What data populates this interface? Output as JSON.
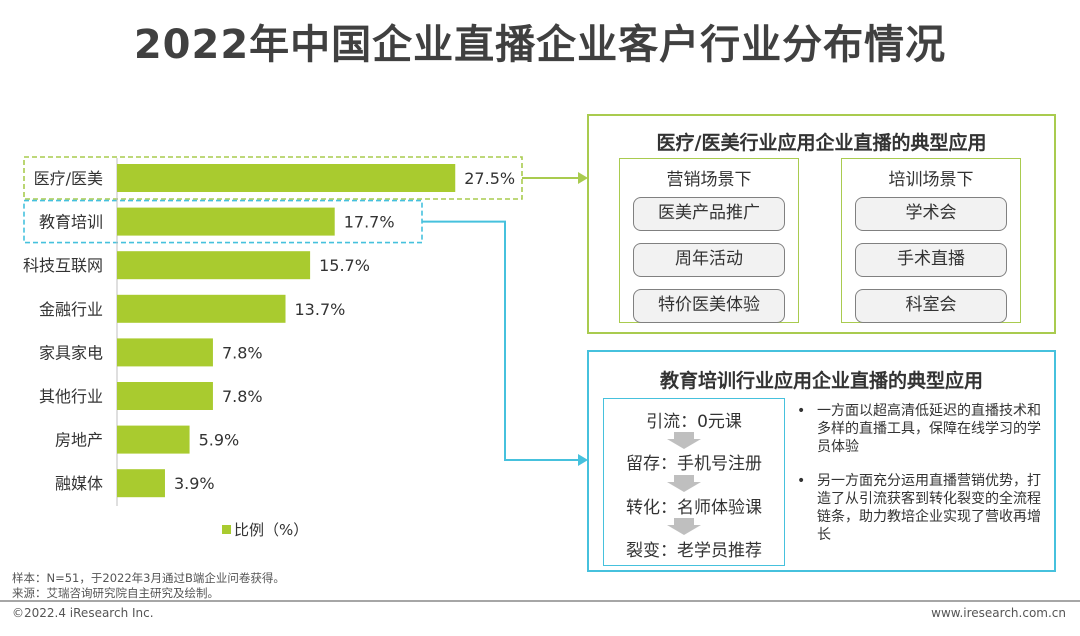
{
  "title": "2022年中国企业直播企业客户行业分布情况",
  "chart_data": {
    "type": "bar",
    "orientation": "horizontal",
    "categories": [
      "医疗/医美",
      "教育培训",
      "科技互联网",
      "金融行业",
      "家具家电",
      "其他行业",
      "房地产",
      "融媒体"
    ],
    "series": [
      {
        "name": "比例（%）",
        "values": [
          27.5,
          17.7,
          15.7,
          13.7,
          7.8,
          7.8,
          5.9,
          3.9
        ]
      }
    ],
    "value_labels": [
      "27.5%",
      "17.7%",
      "15.7%",
      "13.7%",
      "7.8%",
      "7.8%",
      "5.9%",
      "3.9%"
    ],
    "xlim": [
      0,
      30
    ],
    "legend_position": "bottom",
    "grid": false,
    "bar_color": "#a9cb2f",
    "highlight_colors": [
      "#a9cb4f",
      "#46c1dd"
    ]
  },
  "legend_label": "比例（%）",
  "medical_panel": {
    "title": "医疗/医美行业应用企业直播的典型应用",
    "marketing": {
      "title": "营销场景下",
      "items": [
        "医美产品推广",
        "周年活动",
        "特价医美体验"
      ]
    },
    "training": {
      "title": "培训场景下",
      "items": [
        "学术会",
        "手术直播",
        "科室会"
      ]
    }
  },
  "education_panel": {
    "title": "教育培训行业应用企业直播的典型应用",
    "funnel": [
      "引流：0元课",
      "留存：手机号注册",
      "转化：名师体验课",
      "裂变：老学员推荐"
    ],
    "bullets": [
      "一方面以超高清低延迟的直播技术和多样的直播工具，保障在线学习的学员体验",
      "另一方面充分运用直播营销优势，打造了从引流获客到转化裂变的全流程链条，助力教培企业实现了营收再增长"
    ]
  },
  "notes": {
    "sample": "样本：N=51，于2022年3月通过B端企业问卷获得。",
    "source": "来源：艾瑞咨询研究院自主研究及绘制。"
  },
  "footer": {
    "copyright": "©2022.4 iResearch Inc.",
    "website": "www.iresearch.com.cn"
  }
}
